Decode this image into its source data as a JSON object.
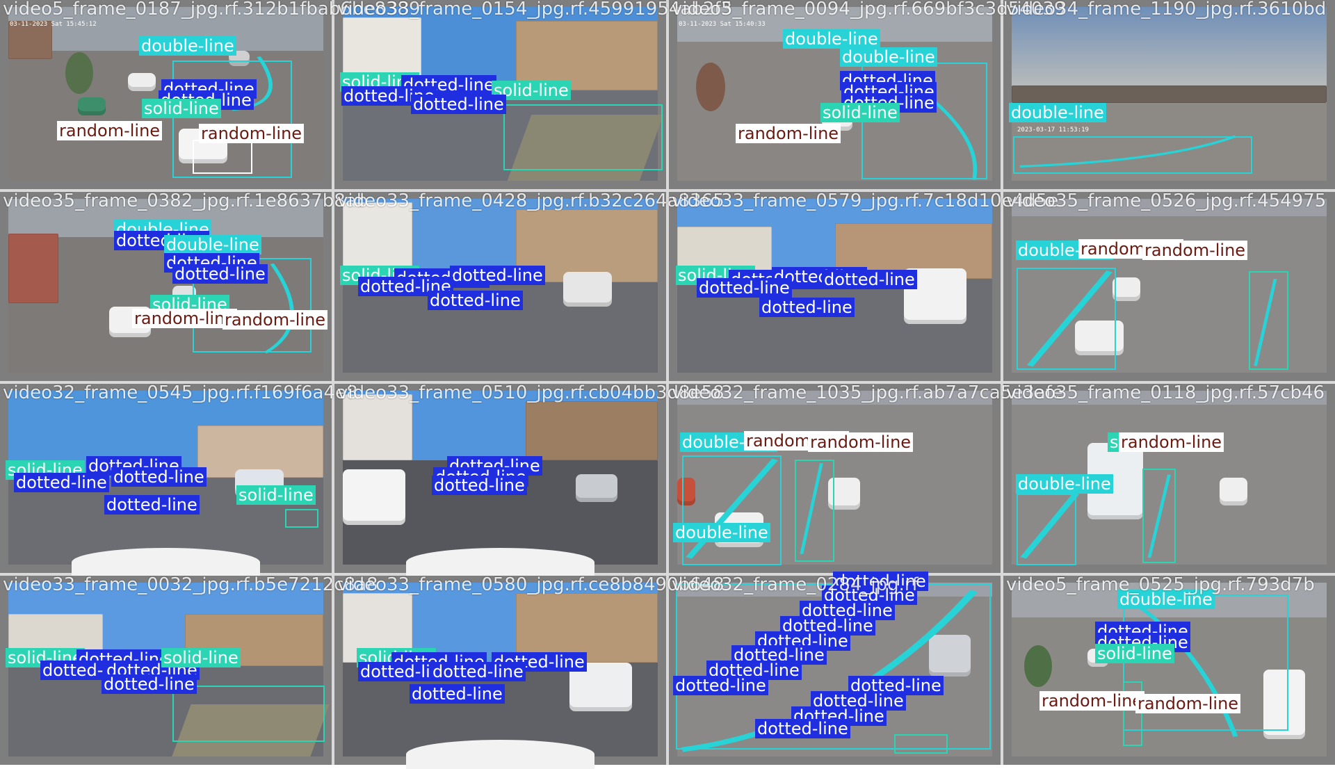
{
  "colors": {
    "double-line": "#27d3d6",
    "dotted-line": "#1f2fe0",
    "solid-line": "#2bd5b4",
    "random-line": "#ffffff",
    "random-line_text": "#6b1a12",
    "double-line_text": "#ffffff",
    "dotted-line_text": "#ffffff",
    "solid-line_text": "#ffffff"
  },
  "tiles": [
    {
      "caption": "video5_frame_0187_jpg.rf.312b1fbab6be8389",
      "timestamp": "03-11-2023 Sat 15:45:12",
      "labels": [
        {
          "cls": "double-line",
          "text": "double-line"
        },
        {
          "cls": "dotted-line",
          "text": "dotted-line"
        },
        {
          "cls": "dotted-line",
          "text": "dotted-line"
        },
        {
          "cls": "solid-line",
          "text": "solid-line"
        },
        {
          "cls": "random-line",
          "text": "random-line"
        },
        {
          "cls": "random-line",
          "text": "random-line"
        }
      ]
    },
    {
      "caption": "video33_frame_0154_jpg.rf.45991954ab2f3",
      "timestamp": "",
      "labels": [
        {
          "cls": "solid-line",
          "text": "solid-line"
        },
        {
          "cls": "dotted-line",
          "text": "dotted-line"
        },
        {
          "cls": "dotted-line",
          "text": "dotted-line"
        },
        {
          "cls": "solid-line",
          "text": "solid-line"
        },
        {
          "cls": "dotted-line",
          "text": "dotted-line"
        }
      ]
    },
    {
      "caption": "video5_frame_0094_jpg.rf.669bf3c3d54039",
      "timestamp": "03-11-2023 Sat 15:40:33",
      "labels": [
        {
          "cls": "double-line",
          "text": "double-line"
        },
        {
          "cls": "double-line",
          "text": "double-line"
        },
        {
          "cls": "dotted-line",
          "text": "dotted-line"
        },
        {
          "cls": "dotted-line",
          "text": "dotted-line"
        },
        {
          "cls": "dotted-line",
          "text": "dotted-line"
        },
        {
          "cls": "solid-line",
          "text": "solid-line"
        },
        {
          "cls": "random-line",
          "text": "random-line"
        }
      ]
    },
    {
      "caption": "video34_frame_1190_jpg.rf.3610bd",
      "timestamp": "2023-03-17 11:53:19",
      "labels": [
        {
          "cls": "double-line",
          "text": "double-line"
        }
      ]
    },
    {
      "caption": "video35_frame_0382_jpg.rf.1e8637b8ab",
      "timestamp": "",
      "labels": [
        {
          "cls": "double-line",
          "text": "double-line"
        },
        {
          "cls": "dotted-line",
          "text": "dotted-line"
        },
        {
          "cls": "double-line",
          "text": "double-line"
        },
        {
          "cls": "dotted-line",
          "text": "dotted-line"
        },
        {
          "cls": "dotted-line",
          "text": "dotted-line"
        },
        {
          "cls": "solid-line",
          "text": "solid-line"
        },
        {
          "cls": "random-line",
          "text": "random-line"
        },
        {
          "cls": "random-line",
          "text": "random-line"
        }
      ]
    },
    {
      "caption": "video33_frame_0428_jpg.rf.b32c264a8365",
      "timestamp": "",
      "labels": [
        {
          "cls": "solid-line",
          "text": "solid-line"
        },
        {
          "cls": "dotted-line",
          "text": "dotted-line"
        },
        {
          "cls": "dotted-line",
          "text": "dotted-line"
        },
        {
          "cls": "dotted-line",
          "text": "dotted-line"
        },
        {
          "cls": "dotted-line",
          "text": "dotted-line"
        }
      ]
    },
    {
      "caption": "video33_frame_0579_jpg.rf.7c18d10e4d5e",
      "timestamp": "",
      "labels": [
        {
          "cls": "solid-line",
          "text": "solid-line"
        },
        {
          "cls": "dotted-line",
          "text": "dotted-line"
        },
        {
          "cls": "dotted-line",
          "text": "dotted-line"
        },
        {
          "cls": "dotted-line",
          "text": "dotted-line"
        },
        {
          "cls": "dotted-line",
          "text": "dotted-line"
        },
        {
          "cls": "dotted-line",
          "text": "dotted-line"
        }
      ]
    },
    {
      "caption": "video35_frame_0526_jpg.rf.454975",
      "timestamp": "",
      "labels": [
        {
          "cls": "double-line",
          "text": "double-line"
        },
        {
          "cls": "random-line",
          "text": "random-line"
        },
        {
          "cls": "random-line",
          "text": "random-line"
        }
      ]
    },
    {
      "caption": "video32_frame_0545_jpg.rf.f169f6a4e8",
      "timestamp": "",
      "labels": [
        {
          "cls": "solid-line",
          "text": "solid-line"
        },
        {
          "cls": "dotted-line",
          "text": "dotted-line"
        },
        {
          "cls": "dotted-line",
          "text": "dotted-line"
        },
        {
          "cls": "dotted-line",
          "text": "dotted-line"
        },
        {
          "cls": "dotted-line",
          "text": "dotted-line"
        },
        {
          "cls": "solid-line",
          "text": "solid-line"
        }
      ]
    },
    {
      "caption": "video33_frame_0510_jpg.rf.cb04bb3d8e58",
      "timestamp": "",
      "labels": [
        {
          "cls": "dotted-line",
          "text": "dotted-line"
        },
        {
          "cls": "dotted-line",
          "text": "dotted-line"
        },
        {
          "cls": "dotted-line",
          "text": "dotted-line"
        }
      ]
    },
    {
      "caption": "video32_frame_1035_jpg.rf.ab7a7ca5e3afe",
      "timestamp": "",
      "labels": [
        {
          "cls": "double-line",
          "text": "double-line"
        },
        {
          "cls": "random-line",
          "text": "random-line"
        },
        {
          "cls": "random-line",
          "text": "random-line"
        },
        {
          "cls": "double-line",
          "text": "double-line"
        }
      ]
    },
    {
      "caption": "video35_frame_0118_jpg.rf.57cb46",
      "timestamp": "",
      "labels": [
        {
          "cls": "solid-line",
          "text": "solid-line"
        },
        {
          "cls": "random-line",
          "text": "random-line"
        },
        {
          "cls": "double-line",
          "text": "double-line"
        }
      ]
    },
    {
      "caption": "video33_frame_0032_jpg.rf.b5e7212c8a8",
      "timestamp": "",
      "labels": [
        {
          "cls": "solid-line",
          "text": "solid-line"
        },
        {
          "cls": "dotted-line",
          "text": "dotted-line"
        },
        {
          "cls": "dotted-line",
          "text": "dotted-line"
        },
        {
          "cls": "dotted-line",
          "text": "dotted-line"
        },
        {
          "cls": "dotted-line",
          "text": "dotted-line"
        },
        {
          "cls": "solid-line",
          "text": "solid-line"
        }
      ]
    },
    {
      "caption": "video33_frame_0580_jpg.rf.ce8b8490b648",
      "timestamp": "",
      "labels": [
        {
          "cls": "solid-line",
          "text": "solid-line"
        },
        {
          "cls": "dotted-line",
          "text": "dotted-line"
        },
        {
          "cls": "dotted-line",
          "text": "dotted-line"
        },
        {
          "cls": "dotted-line",
          "text": "dotted-line"
        },
        {
          "cls": "dotted-line",
          "text": "dotted-line"
        },
        {
          "cls": "dotted-line",
          "text": "dotted-line"
        }
      ]
    },
    {
      "caption": "video32_frame_0284_jpg.rf",
      "timestamp": "",
      "labels": [
        {
          "cls": "dotted-line",
          "text": "dotted-line"
        },
        {
          "cls": "dotted-line",
          "text": "dotted-line"
        },
        {
          "cls": "dotted-line",
          "text": "dotted-line"
        },
        {
          "cls": "dotted-line",
          "text": "dotted-line"
        },
        {
          "cls": "dotted-line",
          "text": "dotted-line"
        },
        {
          "cls": "dotted-line",
          "text": "dotted-line"
        },
        {
          "cls": "dotted-line",
          "text": "dotted-line"
        },
        {
          "cls": "dotted-line",
          "text": "dotted-line"
        },
        {
          "cls": "dotted-line",
          "text": "dotted-line"
        },
        {
          "cls": "dotted-line",
          "text": "dotted-line"
        },
        {
          "cls": "dotted-line",
          "text": "dotted-line"
        },
        {
          "cls": "dotted-line",
          "text": "dotted-line"
        }
      ]
    },
    {
      "caption": "video5_frame_0525_jpg.rf.793d7b",
      "timestamp": "",
      "labels": [
        {
          "cls": "double-line",
          "text": "double-line"
        },
        {
          "cls": "dotted-line",
          "text": "dotted-line"
        },
        {
          "cls": "dotted-line",
          "text": "dotted-line"
        },
        {
          "cls": "solid-line",
          "text": "solid-line"
        },
        {
          "cls": "random-line",
          "text": "random-line"
        },
        {
          "cls": "random-line",
          "text": "random-line"
        }
      ]
    }
  ]
}
